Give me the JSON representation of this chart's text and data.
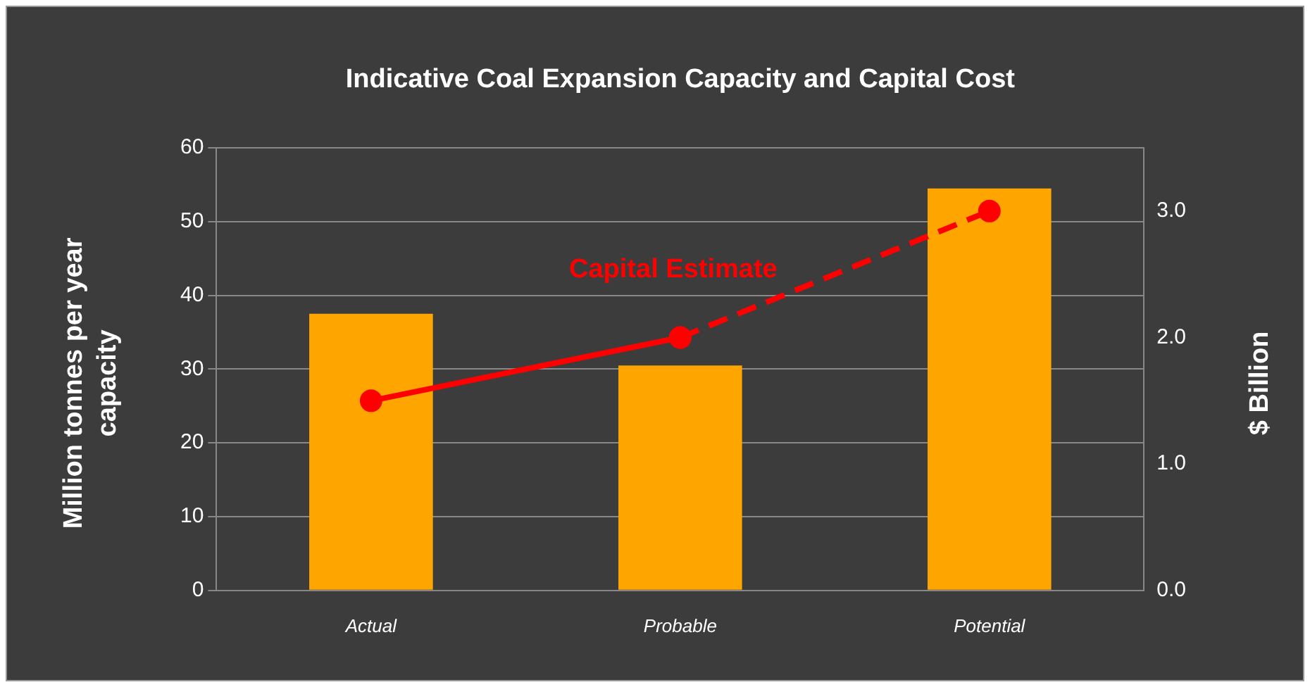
{
  "chart_data": {
    "type": "bar",
    "title": "Indicative Coal Expansion Capacity and Capital Cost",
    "categories": [
      "Actual",
      "Probable",
      "Potential"
    ],
    "ylabel": "Million tonnes per year capacity",
    "y2label": "$ Billion",
    "series": [
      {
        "color": "#ffa500",
        "values": [
          37.5,
          30.5,
          54.5
        ]
      },
      {
        "type": "line",
        "name": "Capital Estimate",
        "axis": "y2",
        "color": "#ff0000",
        "line_style": "solid",
        "values": [
          1.5,
          2.0,
          null
        ]
      },
      {
        "type": "line",
        "axis": "y2",
        "color": "#ff0000",
        "line_style": "dashed",
        "values": [
          null,
          2.0,
          3.0
        ]
      }
    ],
    "ylim": [
      0,
      60
    ],
    "yticks": [
      0,
      10,
      20,
      30,
      40,
      50,
      60
    ],
    "y2lim": [
      0,
      3.5
    ],
    "y2ticks": [
      {
        "value": 0,
        "label": "0.0"
      },
      {
        "value": 1,
        "label": "1.0"
      },
      {
        "value": 2,
        "label": "2.0"
      },
      {
        "value": 3,
        "label": "3.0"
      }
    ],
    "grid": "y",
    "legend": false,
    "marker": "circle"
  }
}
